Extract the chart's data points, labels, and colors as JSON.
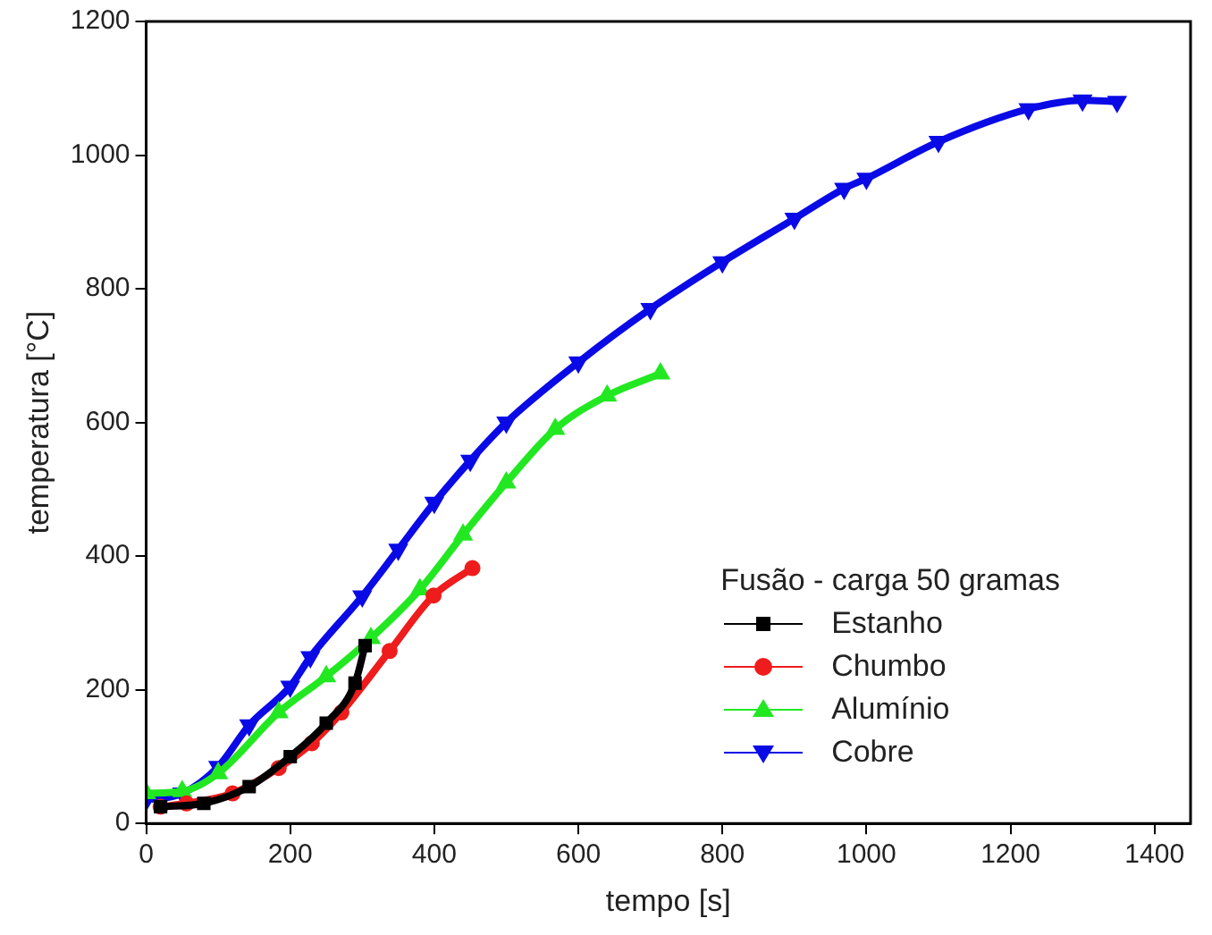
{
  "chart_data": {
    "type": "line",
    "xlabel": "tempo [s]",
    "ylabel": "temperatura [°C]",
    "legend_title": "Fusão - carga 50 gramas",
    "legend": "bottom right",
    "grid": false,
    "xlim": [
      0,
      1450
    ],
    "xticks": [
      0,
      200,
      400,
      600,
      800,
      1000,
      1200,
      1400
    ],
    "ylim": [
      0,
      1200
    ],
    "yticks": [
      0,
      200,
      400,
      600,
      800,
      1000,
      1200
    ],
    "series": [
      {
        "name": "Estanho",
        "color": "#000000",
        "marker": "square",
        "x": [
          20,
          80,
          143,
          200,
          250,
          290,
          304
        ],
        "values": [
          25,
          30,
          55,
          100,
          150,
          210,
          266
        ]
      },
      {
        "name": "Chumbo",
        "color": "#ee1c1c",
        "marker": "circle",
        "x": [
          20,
          56,
          120,
          184,
          230,
          271,
          338,
          399,
          453
        ],
        "values": [
          25,
          30,
          45,
          83,
          120,
          166,
          258,
          341,
          382
        ]
      },
      {
        "name": "Alumínio",
        "color": "#22e822",
        "marker": "triangle",
        "x": [
          0,
          50,
          100,
          184,
          250,
          312,
          380,
          440,
          500,
          568,
          640,
          714
        ],
        "values": [
          45,
          48,
          75,
          166,
          220,
          277,
          350,
          432,
          510,
          590,
          640,
          673
        ]
      },
      {
        "name": "Cobre",
        "color": "#0a0ae6",
        "marker": "triangle-down",
        "x": [
          0,
          50,
          100,
          143,
          200,
          228,
          300,
          350,
          400,
          450,
          500,
          600,
          700,
          800,
          900,
          969,
          1000,
          1100,
          1225,
          1300,
          1348
        ],
        "values": [
          35,
          45,
          85,
          147,
          205,
          249,
          340,
          410,
          480,
          543,
          600,
          690,
          770,
          840,
          905,
          950,
          965,
          1020,
          1069,
          1082,
          1080
        ]
      }
    ]
  }
}
